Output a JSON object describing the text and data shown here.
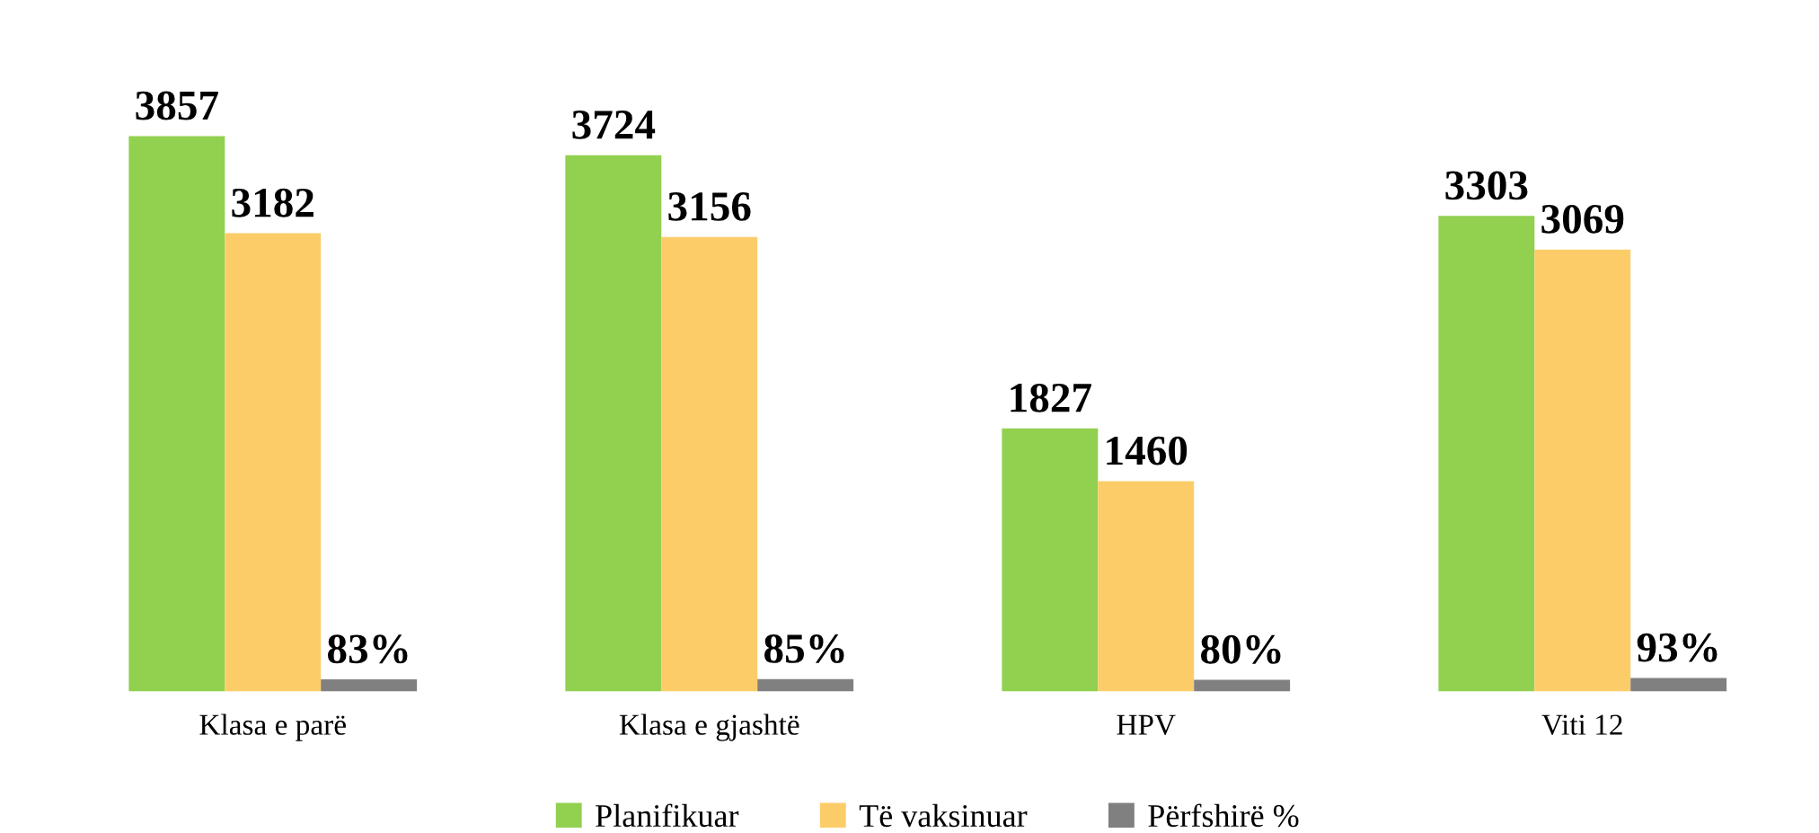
{
  "chart_data": {
    "type": "bar",
    "categories": [
      "Klasa e parë",
      "Klasa e gjashtë",
      "HPV",
      "Viti 12"
    ],
    "series": [
      {
        "name": "Planifikuar",
        "color": "#92d050",
        "values": [
          3857,
          3724,
          1827,
          3303
        ],
        "value_labels": [
          "3857",
          "3724",
          "1827",
          "3303"
        ]
      },
      {
        "name": "Të vaksinuar",
        "color": "#fccc69",
        "values": [
          3182,
          3156,
          1460,
          3069
        ],
        "value_labels": [
          "3182",
          "3156",
          "1460",
          "3069"
        ]
      },
      {
        "name": "Përfshirë %",
        "color": "#808080",
        "values": [
          83,
          85,
          80,
          93
        ],
        "value_labels": [
          "83%",
          "85%",
          "80%",
          "93%"
        ]
      }
    ],
    "legend": "bottom",
    "grid": false
  }
}
